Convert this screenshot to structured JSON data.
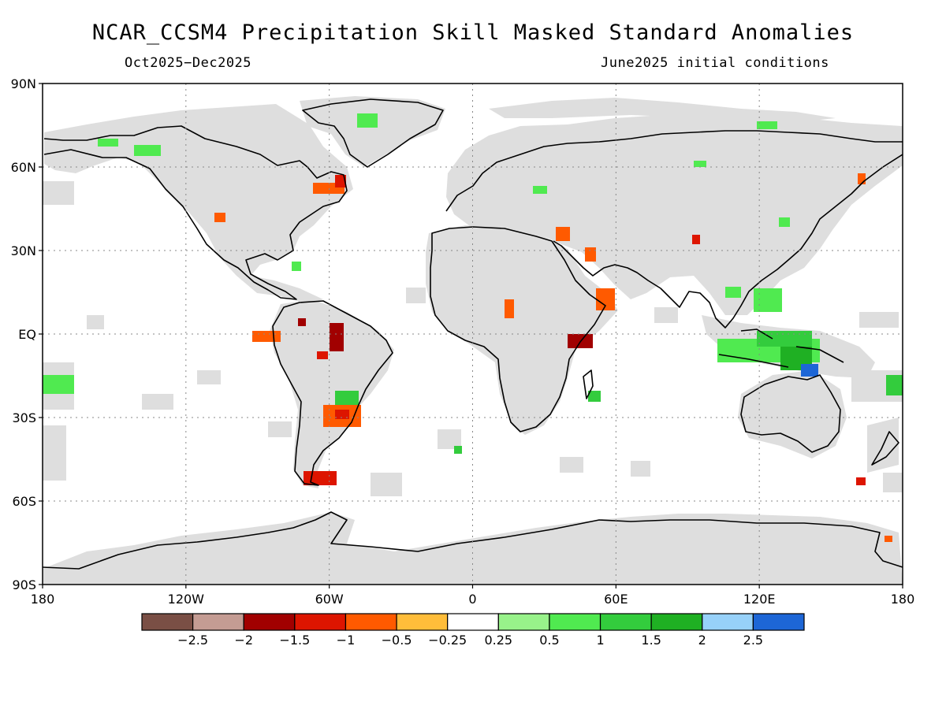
{
  "title": "NCAR_CCSM4 Precipitation Skill Masked Standard Anomalies",
  "subtitle_left": "Oct2025−Dec2025",
  "subtitle_right": "June2025 initial conditions",
  "axes": {
    "lat_ticks": [
      {
        "value": 90,
        "label": "90N"
      },
      {
        "value": 60,
        "label": "60N"
      },
      {
        "value": 30,
        "label": "30N"
      },
      {
        "value": 0,
        "label": "EQ"
      },
      {
        "value": -30,
        "label": "30S"
      },
      {
        "value": -60,
        "label": "60S"
      },
      {
        "value": -90,
        "label": "90S"
      }
    ],
    "lon_ticks": [
      {
        "value": -180,
        "label": "180"
      },
      {
        "value": -120,
        "label": "120W"
      },
      {
        "value": -60,
        "label": "60W"
      },
      {
        "value": 0,
        "label": "0"
      },
      {
        "value": 60,
        "label": "60E"
      },
      {
        "value": 120,
        "label": "120E"
      },
      {
        "value": 180,
        "label": "180"
      }
    ],
    "grid": true
  },
  "colorbar": {
    "colors": [
      "#7a4f45",
      "#c49c93",
      "#a10000",
      "#dd1500",
      "#ff5a00",
      "#ffbd3a",
      "#ffffff",
      "#98f28a",
      "#50ea50",
      "#33cc3d",
      "#1fb023",
      "#97d1f9",
      "#1d66d6"
    ],
    "labels": [
      "−2.5",
      "−2",
      "−1.5",
      "−1",
      "−0.5",
      "−0.25",
      "0.25",
      "0.5",
      "1",
      "1.5",
      "2",
      "2.5"
    ]
  },
  "colors": {
    "mask_gray": "#dedede",
    "coast": "#000000"
  }
}
